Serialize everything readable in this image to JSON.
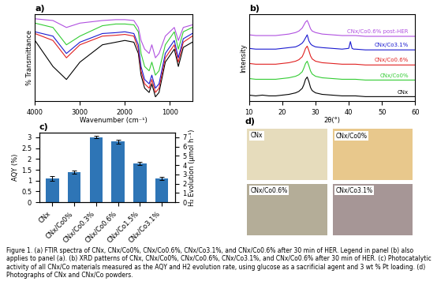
{
  "chart_data": [
    {
      "type": "line",
      "title": "a)",
      "x_label": "Wavenumber (cm⁻¹)",
      "y_label": "% Transmittance",
      "x": [
        4000,
        3600,
        3300,
        3000,
        2500,
        2200,
        2000,
        1800,
        1700,
        1640,
        1560,
        1460,
        1400,
        1320,
        1240,
        1100,
        900,
        810,
        700,
        500
      ],
      "xlim": [
        4000,
        500
      ],
      "xticks": [
        4000,
        3000,
        2000,
        1000
      ],
      "ylim": [
        0,
        100
      ],
      "yticks": [],
      "tick_labels": "x",
      "series": [
        {
          "color": "#000000",
          "values": [
            70,
            40,
            25,
            45,
            65,
            68,
            70,
            68,
            55,
            30,
            15,
            10,
            20,
            5,
            10,
            45,
            60,
            40,
            62,
            68
          ]
        },
        {
          "color": "#33cc33",
          "values": [
            90,
            85,
            65,
            75,
            87,
            89,
            89,
            88,
            80,
            55,
            40,
            35,
            45,
            30,
            35,
            65,
            80,
            60,
            80,
            85
          ]
        },
        {
          "color": "#e02020",
          "values": [
            78,
            70,
            50,
            65,
            75,
            76,
            77,
            75,
            60,
            35,
            20,
            15,
            25,
            10,
            15,
            50,
            65,
            45,
            68,
            75
          ]
        },
        {
          "color": "#1a1ad0",
          "values": [
            80,
            75,
            55,
            68,
            78,
            79,
            80,
            78,
            65,
            40,
            25,
            20,
            30,
            15,
            20,
            55,
            70,
            50,
            72,
            78
          ]
        },
        {
          "color": "#b050e0",
          "values": [
            95,
            93,
            85,
            90,
            93,
            94,
            94,
            93,
            85,
            70,
            60,
            55,
            65,
            50,
            55,
            75,
            85,
            70,
            85,
            88
          ]
        }
      ]
    },
    {
      "type": "line",
      "title": "b)",
      "x_label": "2θ(°)",
      "y_label": "Intensity",
      "x": [
        10,
        12,
        14,
        16,
        18,
        20,
        22,
        24,
        25,
        26,
        26.5,
        27,
        27.5,
        28,
        28.5,
        29,
        30,
        32,
        35,
        38,
        40,
        40.5,
        41,
        41.5,
        42,
        45,
        50,
        55,
        60
      ],
      "xlim": [
        10,
        60
      ],
      "xticks": [
        10,
        20,
        30,
        40,
        50,
        60
      ],
      "ylim": [
        0,
        11.5
      ],
      "yticks": [],
      "tick_labels": "x",
      "series": [
        {
          "name": "CNx",
          "color": "#000000",
          "values": [
            0.8,
            0.7,
            0.8,
            0.7,
            0.7,
            0.8,
            0.9,
            1.1,
            1.3,
            1.7,
            2.2,
            2.9,
            3.2,
            2.6,
            1.8,
            1.4,
            1.1,
            0.9,
            0.8,
            0.7,
            0.7,
            0.7,
            0.7,
            0.7,
            0.7,
            0.6,
            0.6,
            0.6,
            0.6
          ]
        },
        {
          "name": "CNx/Co0%",
          "color": "#33cc33",
          "values": [
            3.0,
            2.9,
            2.9,
            2.9,
            2.9,
            3.0,
            3.1,
            3.3,
            3.5,
            3.9,
            4.4,
            5.0,
            5.3,
            4.7,
            4.0,
            3.6,
            3.3,
            3.1,
            3.0,
            2.9,
            2.9,
            2.9,
            2.9,
            2.9,
            2.9,
            2.8,
            2.8,
            2.8,
            2.8
          ]
        },
        {
          "name": "CNx/Co0.6%",
          "color": "#e02020",
          "values": [
            5.0,
            4.9,
            4.9,
            4.9,
            4.9,
            5.0,
            5.1,
            5.3,
            5.5,
            5.9,
            6.4,
            7.0,
            7.3,
            6.7,
            6.0,
            5.6,
            5.3,
            5.1,
            5.0,
            4.9,
            4.9,
            4.9,
            4.9,
            4.9,
            4.9,
            4.8,
            4.8,
            4.8,
            4.8
          ]
        },
        {
          "name": "CNx/Co3.1%",
          "color": "#1a1ad0",
          "values": [
            7.0,
            6.9,
            6.9,
            6.9,
            6.9,
            7.0,
            7.1,
            7.2,
            7.4,
            7.7,
            8.0,
            8.4,
            8.8,
            8.0,
            7.6,
            7.4,
            7.2,
            7.1,
            7.0,
            6.9,
            7.0,
            7.9,
            7.0,
            6.9,
            6.9,
            6.8,
            6.8,
            6.8,
            6.8
          ]
        },
        {
          "name": "CNx/Co0.6% post-HER",
          "color": "#b050e0",
          "values": [
            8.8,
            8.7,
            8.7,
            8.7,
            8.7,
            8.8,
            8.9,
            9.1,
            9.3,
            9.7,
            10.1,
            10.5,
            10.7,
            10.2,
            9.6,
            9.3,
            9.1,
            8.9,
            8.8,
            8.7,
            8.7,
            8.7,
            8.7,
            8.7,
            8.7,
            8.6,
            8.6,
            8.6,
            8.6
          ]
        }
      ]
    },
    {
      "type": "bar",
      "title": "c)",
      "y_label": "AQY (%)",
      "y2_label": "H₂ Evolution (μmol h⁻¹)",
      "categories": [
        "CNx",
        "CNx/Co0%",
        "CNx/Co0.3%",
        "CNx/Co0.6%",
        "CNx/Co1.5%",
        "CNx/Co3.1%"
      ],
      "values": [
        1.1,
        1.4,
        3.0,
        2.8,
        1.8,
        1.1
      ],
      "errors": [
        0.1,
        0.07,
        0.05,
        0.08,
        0.08,
        0.07
      ],
      "color": "#2e75b6",
      "ylim": [
        0,
        3.2
      ],
      "yticks": [
        0,
        0.5,
        1,
        1.5,
        2,
        2.5,
        3
      ],
      "y2lim": [
        0,
        7.47
      ],
      "y2ticks": [
        0,
        1,
        2,
        3,
        4,
        5,
        6,
        7
      ]
    }
  ],
  "photographs": {
    "title": "d)",
    "items": [
      {
        "label": "CNx",
        "color": "#e6dcbc"
      },
      {
        "label": "CNx/Co0%",
        "color": "#e8c88c"
      },
      {
        "label": "CNx/Co0.6%",
        "color": "#b4ad98"
      },
      {
        "label": "CNx/Co3.1%",
        "color": "#a69696"
      }
    ]
  },
  "caption": "Figure 1. (a) FTIR spectra of CNx, CNx/Co0%, CNx/Co0.6%, CNx/Co3.1%, and CNx/Co0.6% after 30 min of HER. Legend in panel (b) also applies to panel (a). (b) XRD patterns of CNx, CNx/Co0%, CNx/Co0.6%, CNx/Co3.1%, and CNx/Co0.6% after 30 min of HER. (c) Photocatalytic activity of all CNx/Co materials measured as the AQY and H2 evolution rate, using glucose as a sacrificial agent and 3 wt % Pt loading. (d) Photographs of CNx and CNx/Co powders."
}
